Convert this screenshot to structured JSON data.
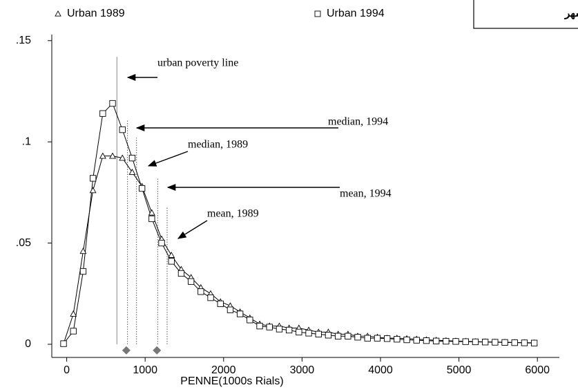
{
  "chart_data": {
    "type": "line",
    "panel_label": "a: شهر",
    "xlabel": "PENNE(1000s Rials)",
    "x": [
      -40,
      85,
      210,
      335,
      460,
      585,
      710,
      835,
      960,
      1085,
      1210,
      1335,
      1460,
      1585,
      1710,
      1835,
      1960,
      2085,
      2210,
      2335,
      2460,
      2585,
      2710,
      2835,
      2960,
      3085,
      3210,
      3335,
      3460,
      3585,
      3710,
      3835,
      3960,
      4085,
      4210,
      4335,
      4460,
      4585,
      4710,
      4835,
      4960,
      5085,
      5210,
      5335,
      5460,
      5585,
      5710,
      5835,
      5960
    ],
    "series": [
      {
        "name": "Urban 1989",
        "marker": "triangle",
        "color": "#000000",
        "values": [
          0.0003,
          0.015,
          0.046,
          0.076,
          0.093,
          0.093,
          0.092,
          0.085,
          0.078,
          0.065,
          0.052,
          0.044,
          0.037,
          0.033,
          0.028,
          0.025,
          0.021,
          0.019,
          0.016,
          0.013,
          0.01,
          0.009,
          0.009,
          0.008,
          0.008,
          0.007,
          0.006,
          0.006,
          0.005,
          0.005,
          0.004,
          0.004,
          0.0035,
          0.003,
          0.003,
          0.0028,
          0.0025,
          0.0022,
          0.002,
          0.0018,
          0.0016,
          0.0015,
          0.0013,
          0.0012,
          0.0011,
          0.001,
          0.0009,
          0.0008,
          0.0007
        ]
      },
      {
        "name": "Urban 1994",
        "marker": "square",
        "color": "#000000",
        "values": [
          0.0003,
          0.0065,
          0.036,
          0.082,
          0.114,
          0.119,
          0.106,
          0.092,
          0.077,
          0.062,
          0.05,
          0.041,
          0.035,
          0.031,
          0.026,
          0.023,
          0.02,
          0.017,
          0.015,
          0.012,
          0.009,
          0.0085,
          0.0075,
          0.007,
          0.006,
          0.0055,
          0.005,
          0.0045,
          0.004,
          0.004,
          0.0035,
          0.003,
          0.003,
          0.0028,
          0.0025,
          0.0022,
          0.002,
          0.0018,
          0.0016,
          0.0015,
          0.0014,
          0.0013,
          0.0012,
          0.0011,
          0.001,
          0.0009,
          0.0008,
          0.0007,
          0.0006
        ]
      }
    ],
    "xlim": [
      -190,
      6280
    ],
    "ylim": [
      -0.0065,
      0.153
    ],
    "xticks": [
      0,
      1000,
      2000,
      3000,
      4000,
      5000,
      6000
    ],
    "yticks": [
      0,
      {
        "value": 0.05,
        "label": ".05"
      },
      {
        "value": 0.1,
        "label": ".1"
      },
      {
        "value": 0.15,
        "label": ".15"
      }
    ],
    "reference_lines": [
      {
        "x": 640,
        "ymax": 0.142,
        "style": "solid",
        "color": "#888888"
      },
      {
        "x": 775,
        "ymax": 0.111,
        "style": "dotted",
        "color": "#555555"
      },
      {
        "x": 890,
        "ymax": 0.102,
        "style": "dotted",
        "color": "#555555"
      },
      {
        "x": 1160,
        "ymax": 0.082,
        "style": "dotted",
        "color": "#555555"
      },
      {
        "x": 1280,
        "ymax": 0.068,
        "style": "dotted",
        "color": "#555555"
      }
    ],
    "diamond_markers": [
      {
        "x": 760,
        "y": -0.003
      },
      {
        "x": 1150,
        "y": -0.003
      }
    ],
    "diamond_color": "#777777",
    "annotations": [
      "urban poverty line",
      "median, 1994",
      "median, 1989",
      "mean, 1994",
      "mean, 1989"
    ]
  }
}
